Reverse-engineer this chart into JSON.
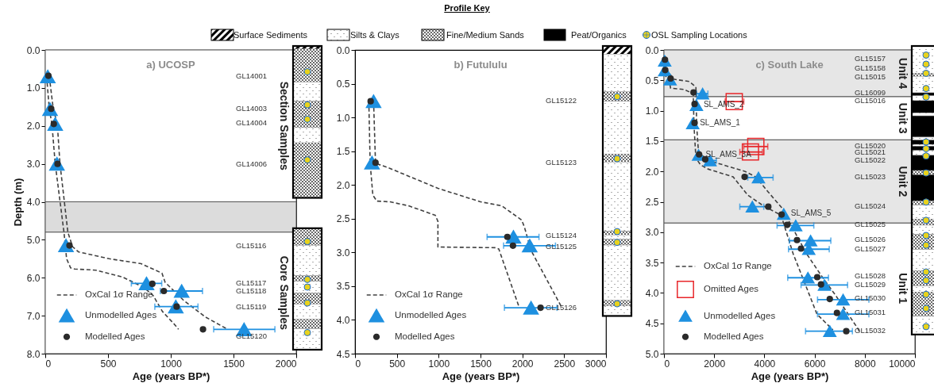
{
  "chart_data": [
    {
      "type": "other",
      "title": "Profile Key",
      "annotations": [
        "Surface Sediments",
        "Silts & Clays",
        "Fine/Medium Sands",
        "Peat/Organics",
        "OSL Sampling Locations"
      ]
    },
    {
      "type": "scatter",
      "title": "a) UCOSP",
      "xlabel": "Age (years BP*)",
      "ylabel": "Depth (m)",
      "xlim": [
        0,
        2000
      ],
      "xticks": [
        0,
        500,
        1000,
        1500,
        2000
      ],
      "ylim": [
        8,
        0
      ],
      "yticks": [
        {
          "value": 0,
          "label": "0.0"
        },
        {
          "value": 1,
          "label": "1.0"
        },
        {
          "value": 2,
          "label": "2.0"
        },
        {
          "value": 3,
          "label": "3.0"
        },
        {
          "value": 4,
          "label": "4.0"
        },
        {
          "value": 5,
          "label": "5.0"
        },
        {
          "value": 6,
          "label": "6.0"
        },
        {
          "value": 7,
          "label": "7.0"
        },
        {
          "value": 8,
          "label": "8.0"
        }
      ],
      "legend": "bottom left",
      "bands": [
        {
          "axis": "y",
          "from": 0,
          "to": 4.0,
          "label": "Section Samples",
          "color": "#ffffff"
        },
        {
          "axis": "y",
          "from": 4.0,
          "to": 4.8,
          "label": null,
          "color": "#dcdcdc"
        },
        {
          "axis": "y",
          "from": 4.8,
          "to": 8.0,
          "label": "Core Samples",
          "color": "#ffffff"
        }
      ],
      "annotations": [
        "GL14001",
        "GL14003",
        "GL14004",
        "GL14006",
        "GL15116",
        "GL15117",
        "GL15118",
        "GL15119",
        "GL15120"
      ],
      "series": [
        {
          "type": "line",
          "name": "OxCal  1σ Range",
          "color": "#404040",
          "line_style": "dashed",
          "x": [
            11,
            32,
            53,
            79,
            149,
            170,
            202,
            234,
            403,
            616,
            786,
            860,
            934,
            1030,
            1062
          ],
          "values": [
            0.7,
            1.56,
            1.95,
            2.99,
            4.8,
            5.5,
            5.74,
            5.77,
            5.8,
            5.98,
            6.26,
            6.47,
            6.89,
            7.23,
            7.36
          ]
        },
        {
          "type": "line",
          "color": "#404040",
          "line_style": "dashed",
          "x": [
            32,
            64,
            96,
            117,
            180,
            217,
            265,
            510,
            764,
            930,
            955,
            1104,
            1274,
            1454
          ],
          "values": [
            0.7,
            1.56,
            1.95,
            2.99,
            4.8,
            5.18,
            5.32,
            5.5,
            5.63,
            5.88,
            6.12,
            6.6,
            7.03,
            7.36
          ]
        },
        {
          "type": "scatter",
          "name": "Unmodelled Ages",
          "color": "#1e90e0",
          "marker": "triangle",
          "x": [
            20,
            38,
            79,
            93,
            165,
            807,
            1087,
            1040,
            1584
          ],
          "values": [
            0.7,
            1.56,
            1.95,
            3.0,
            5.15,
            6.15,
            6.35,
            6.76,
            7.36
          ],
          "xerrors": [
            null,
            null,
            null,
            null,
            null,
            [
              686,
              928
            ],
            [
              917,
              1253
            ],
            [
              873,
              1217
            ],
            [
              1342,
              1830
            ]
          ]
        },
        {
          "type": "scatter",
          "name": "Modelled Ages",
          "color": "#2b2b2b",
          "marker": "circle",
          "x": [
            25,
            47,
            68,
            98,
            193,
            853,
            945,
            1047,
            1257
          ],
          "values": [
            0.68,
            1.55,
            1.95,
            3.0,
            5.15,
            6.16,
            6.35,
            6.76,
            7.36
          ]
        }
      ]
    },
    {
      "type": "scatter",
      "title": "b) Futululu",
      "xlabel": "Age (years BP*)",
      "xlim": [
        0,
        3000
      ],
      "xticks": [
        0,
        500,
        1000,
        1500,
        2000,
        2500,
        3000
      ],
      "ylim": [
        4.5,
        0
      ],
      "yticks": [
        {
          "value": 0,
          "label": "0.0"
        },
        {
          "value": 0.5,
          "label": "0.5"
        },
        {
          "value": 1,
          "label": "1.0"
        },
        {
          "value": 1.5,
          "label": "1.5"
        },
        {
          "value": 2,
          "label": "2.0"
        },
        {
          "value": 2.5,
          "label": "2.5"
        },
        {
          "value": 3,
          "label": "3.0"
        },
        {
          "value": 3.5,
          "label": "3.5"
        },
        {
          "value": 4,
          "label": "4.0"
        },
        {
          "value": 4.5,
          "label": "4.5"
        }
      ],
      "legend": "bottom left",
      "annotations": [
        "GL15122",
        "GL15123",
        "GL15124",
        "GL15125",
        "GL15126"
      ],
      "series": [
        {
          "type": "line",
          "name": "OxCal  1σ Range",
          "color": "#404040",
          "line_style": "dashed",
          "x": [
            165,
            181,
            213,
            261,
            420,
            642,
            960,
            991,
            991,
            1675,
            1719,
            1961
          ],
          "values": [
            0.76,
            1.68,
            2.15,
            2.24,
            2.25,
            2.31,
            2.45,
            2.54,
            2.92,
            2.93,
            2.95,
            3.81
          ]
        },
        {
          "type": "line",
          "color": "#404040",
          "line_style": "dashed",
          "x": [
            222,
            245,
            388,
            991,
            1500,
            1754,
            1992,
            2024,
            2104,
            2469
          ],
          "values": [
            0.76,
            1.68,
            1.74,
            2.05,
            2.25,
            2.31,
            2.52,
            2.62,
            2.97,
            3.81
          ]
        },
        {
          "type": "scatter",
          "name": "Unmodelled Ages",
          "color": "#1e90e0",
          "marker": "triangle",
          "x": [
            222,
            203,
            1894,
            2088,
            2104
          ],
          "values": [
            0.76,
            1.67,
            2.77,
            2.9,
            3.82
          ],
          "xerrors": [
            null,
            null,
            [
              1579,
              2199
            ],
            [
              1776,
              2396
            ],
            [
              1786,
              2415
            ]
          ]
        },
        {
          "type": "scatter",
          "name": "Modelled Ages",
          "color": "#2b2b2b",
          "marker": "circle",
          "x": [
            187,
            245,
            1821,
            1888,
            2218
          ],
          "values": [
            0.76,
            1.67,
            2.77,
            2.9,
            3.82
          ]
        }
      ]
    },
    {
      "type": "scatter",
      "title": "c) South Lake",
      "xlabel": "Age (years BP*)",
      "xlim": [
        0,
        10000
      ],
      "xticks": [
        0,
        2000,
        4000,
        6000,
        8000,
        10000
      ],
      "ylim": [
        5,
        0
      ],
      "yticks": [
        {
          "value": 0,
          "label": "0.0"
        },
        {
          "value": 0.5,
          "label": "0.5"
        },
        {
          "value": 1,
          "label": "1.0"
        },
        {
          "value": 1.5,
          "label": "1.5"
        },
        {
          "value": 2,
          "label": "2.0"
        },
        {
          "value": 2.5,
          "label": "2.5"
        },
        {
          "value": 3,
          "label": "3.0"
        },
        {
          "value": 3.5,
          "label": "3.5"
        },
        {
          "value": 4,
          "label": "4.0"
        },
        {
          "value": 4.5,
          "label": "4.5"
        },
        {
          "value": 5,
          "label": "5.0"
        }
      ],
      "legend": "bottom left",
      "bands": [
        {
          "axis": "y",
          "from": 0,
          "to": 0.77,
          "label": "Unit 4",
          "color": "#e6e6e6"
        },
        {
          "axis": "y",
          "from": 0.77,
          "to": 1.48,
          "label": "Unit 3",
          "color": "#ffffff"
        },
        {
          "axis": "y",
          "from": 1.48,
          "to": 2.85,
          "label": "Unit 2",
          "color": "#e6e6e6"
        },
        {
          "axis": "y",
          "from": 2.85,
          "to": 5.0,
          "label": "Unit 1",
          "color": "#ffffff"
        }
      ],
      "annotations": [
        "GL15157",
        "GL15158",
        "GL15015",
        "GL16099",
        "GL15016",
        "GL15020",
        "GL15021",
        "GL15022",
        "GL15023",
        "GL15024",
        "GL15025",
        "GL15026",
        "GL15027",
        "GL15028",
        "GL15029",
        "GL15030",
        "GL15031",
        "GL15032",
        {
          "text": "SL_AMS_2",
          "x": 1294,
          "y": 0.91
        },
        {
          "text": "SL_AMS_1",
          "x": 1145,
          "y": 1.21
        },
        {
          "text": "SL_AMS_3A",
          "x": 1379,
          "y": 1.73
        },
        {
          "text": "SL_AMS_5",
          "x": 4772,
          "y": 2.7
        }
      ],
      "series": [
        {
          "type": "line",
          "name": "OxCal  1σ Range",
          "color": "#404040",
          "line_style": "dashed",
          "x": [
            0,
            212,
            265,
            795,
            1166,
            1198,
            1273,
            1453,
            1750,
            2757,
            3340,
            3977,
            4666,
            5143,
            5726,
            6097,
            6734
          ],
          "values": [
            0.39,
            0.51,
            0.63,
            0.65,
            0.72,
            1.26,
            1.78,
            1.89,
            1.96,
            2.09,
            2.39,
            2.57,
            2.72,
            3.35,
            3.96,
            4.35,
            4.61
          ]
        },
        {
          "type": "line",
          "color": "#404040",
          "line_style": "dashed",
          "x": [
            0,
            265,
            371,
            1007,
            1273,
            1304,
            1379,
            1856,
            3234,
            3659,
            4136,
            4719,
            4931,
            5674,
            6310,
            6840,
            7794
          ],
          "values": [
            0.33,
            0.41,
            0.48,
            0.52,
            0.61,
            1.26,
            1.7,
            1.83,
            2.0,
            2.09,
            2.33,
            2.61,
            2.78,
            3.35,
            3.74,
            4.04,
            4.63
          ]
        },
        {
          "type": "scatter",
          "name": "Omitted Ages",
          "color": "#e8262a",
          "marker": "square",
          "x": [
            2800,
            3659,
            3446
          ],
          "values": [
            0.85,
            1.59,
            1.68
          ],
          "xerrors": [
            [
              2439,
              3181
            ],
            [
              3181,
              4136
            ],
            [
              3022,
              3924
            ]
          ]
        },
        {
          "type": "scatter",
          "name": "Unmodelled Ages",
          "color": "#1e90e0",
          "marker": "triangle",
          "x": [
            30,
            30,
            244,
            1538,
            1294,
            1145,
            1379,
            1835,
            3765,
            3521,
            4772,
            5249,
            5843,
            5769,
            5737,
            6394,
            7137,
            7137,
            6607
          ],
          "values": [
            0.18,
            0.34,
            0.49,
            0.72,
            0.91,
            1.21,
            1.73,
            1.82,
            2.1,
            2.58,
            2.7,
            2.89,
            3.14,
            3.28,
            3.75,
            3.87,
            4.11,
            4.35,
            4.63
          ],
          "xerrors": [
            null,
            null,
            null,
            [
              1304,
              1750
            ],
            null,
            null,
            null,
            [
              1730,
              2090
            ],
            [
              3340,
              4348
            ],
            [
              3022,
              3977
            ],
            null,
            [
              4507,
              5970
            ],
            [
              4995,
              6649
            ],
            [
              4963,
              6585
            ],
            [
              4931,
              6554
            ],
            [
              5461,
              7317
            ],
            [
              6119,
              8165
            ],
            [
              6119,
              8165
            ],
            [
              5642,
              7508
            ]
          ]
        },
        {
          "type": "scatter",
          "name": "Modelled Ages",
          "color": "#2b2b2b",
          "marker": "circle",
          "x": [
            40,
            50,
            265,
            1177,
            1220,
            1220,
            1400,
            1644,
            3213,
            4157,
            4687,
            4910,
            5302,
            5461,
            6108,
            6257,
            6607,
            6893,
            7264
          ],
          "values": [
            0.16,
            0.33,
            0.47,
            0.7,
            0.89,
            1.2,
            1.72,
            1.8,
            2.09,
            2.58,
            2.71,
            2.88,
            3.13,
            3.27,
            3.74,
            3.86,
            4.1,
            4.33,
            4.63
          ]
        }
      ]
    }
  ]
}
